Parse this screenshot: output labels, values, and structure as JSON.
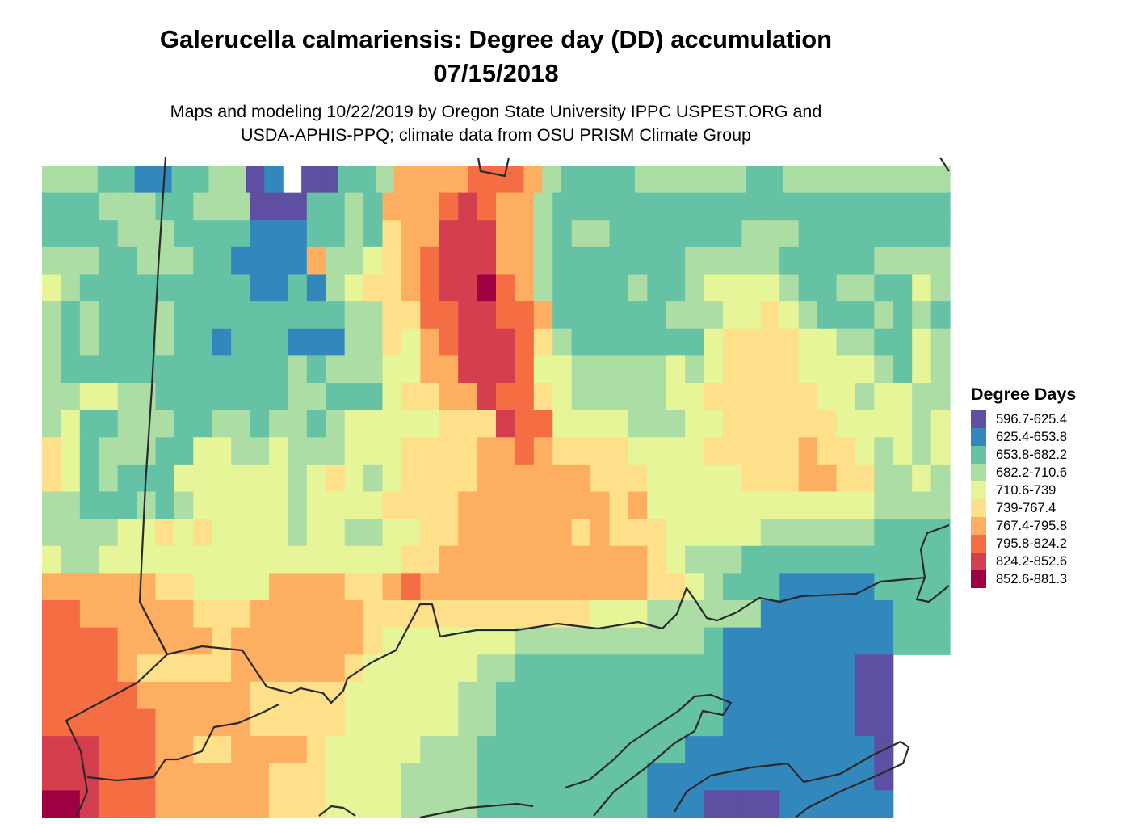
{
  "title_line1": "Galerucella calmariensis: Degree day (DD) accumulation",
  "title_line2": "07/15/2018",
  "subtitle_line1": "Maps and modeling 10/22/2019 by Oregon State University IPPC USPEST.ORG and",
  "subtitle_line2": "USDA-APHIS-PPQ; climate data from OSU PRISM Climate Group",
  "legend": {
    "title": "Degree Days",
    "items": [
      {
        "label": "596.7-625.4",
        "color": "#5e4fa2"
      },
      {
        "label": "625.4-653.8",
        "color": "#3288bd"
      },
      {
        "label": "653.8-682.2",
        "color": "#66c2a5"
      },
      {
        "label": "682.2-710.6",
        "color": "#abdda4"
      },
      {
        "label": "710.6-739",
        "color": "#e6f598"
      },
      {
        "label": "739-767.4",
        "color": "#fee08b"
      },
      {
        "label": "767.4-795.8",
        "color": "#fdae61"
      },
      {
        "label": "795.8-824.2",
        "color": "#f46d43"
      },
      {
        "label": "824.2-852.6",
        "color": "#d53e4f"
      },
      {
        "label": "852.6-881.3",
        "color": "#9e0142"
      }
    ]
  },
  "map_grid": {
    "legend_index_key": "0=596.7-625.4 ... 9=852.6-881.3, .=no data",
    "rows": [
      "3332211223301.00223666677763222233333322333333333",
      "222333223330002232666787663222222222222222222222",
      "222233322221112232566888663233222222233322222222",
      "333223332211116334567888663222222233333222223333",
      "432222222221121345567889763222232234444322332243",
      "323222322222222233557788776222222333445432223232",
      "323222322122211133546788875322222224555544332243",
      "322222222222232333446688874433333434555544443243",
      "334433222222233222455668775433333445555554434433",
      "342233322332332344444555877444433344555555444434",
      "542333224433433344455556676555544445555565543434",
      "542322244444434543455556666665554444455566553343",
      "332223234444434444555566666666564444444444443333",
      "333344545444434433445566666656555444443333332222",
      "433444444444444444455666666666665433322222222222",
      "666666554444666655676666666666665543222111112222",
      "776666665556666665555555555554443333331111111222",
      "777766666566666665444444433333333332111111111222",
      "777765555566666654444443322222222222111111100...",
      "777776666665555544444433222222222222111111100...",
      "777777666665555544444433222222222222111111100...",
      "888777665566665444443332222222222211111111110...",
      "888777666666555444433332222222221111111111110...",
      "998777666666555444433332222222221110000111111..."
    ]
  }
}
